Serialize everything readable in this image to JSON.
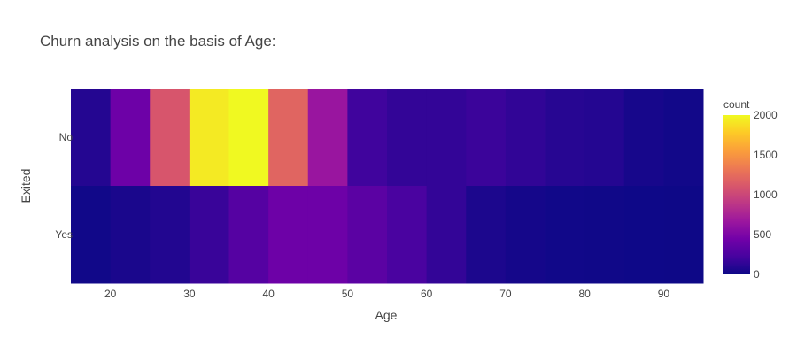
{
  "chart_data": {
    "type": "heatmap",
    "title": "Churn analysis on the basis of Age:",
    "xlabel": "Age",
    "ylabel": "Exited",
    "x_tick_labels": [
      "20",
      "30",
      "40",
      "50",
      "60",
      "70",
      "80",
      "90"
    ],
    "x_tick_values": [
      20,
      30,
      40,
      50,
      60,
      70,
      80,
      90
    ],
    "xlim": [
      15,
      95
    ],
    "bin_width": 5,
    "bin_starts": [
      15,
      20,
      25,
      30,
      35,
      40,
      45,
      50,
      55,
      60,
      65,
      70,
      75,
      80,
      85,
      90
    ],
    "rows": [
      {
        "label": "No",
        "values": [
          90,
          420,
          1100,
          1930,
          2010,
          1200,
          650,
          200,
          150,
          150,
          180,
          140,
          100,
          90,
          40,
          20
        ]
      },
      {
        "label": "Yes",
        "values": [
          15,
          50,
          80,
          170,
          300,
          420,
          420,
          330,
          240,
          150,
          60,
          30,
          15,
          10,
          5,
          2
        ]
      }
    ],
    "colorbar": {
      "title": "count",
      "min": 0,
      "max": 2000,
      "tick_labels": [
        "0",
        "500",
        "1000",
        "1500",
        "2000"
      ],
      "tick_values": [
        0,
        500,
        1000,
        1500,
        2000
      ]
    },
    "colorscale": [
      "#0d0887",
      "#46039f",
      "#7201a8",
      "#9c179e",
      "#bd3786",
      "#d8576b",
      "#ed7953",
      "#fb9f3a",
      "#fdca26",
      "#f0f921"
    ]
  }
}
